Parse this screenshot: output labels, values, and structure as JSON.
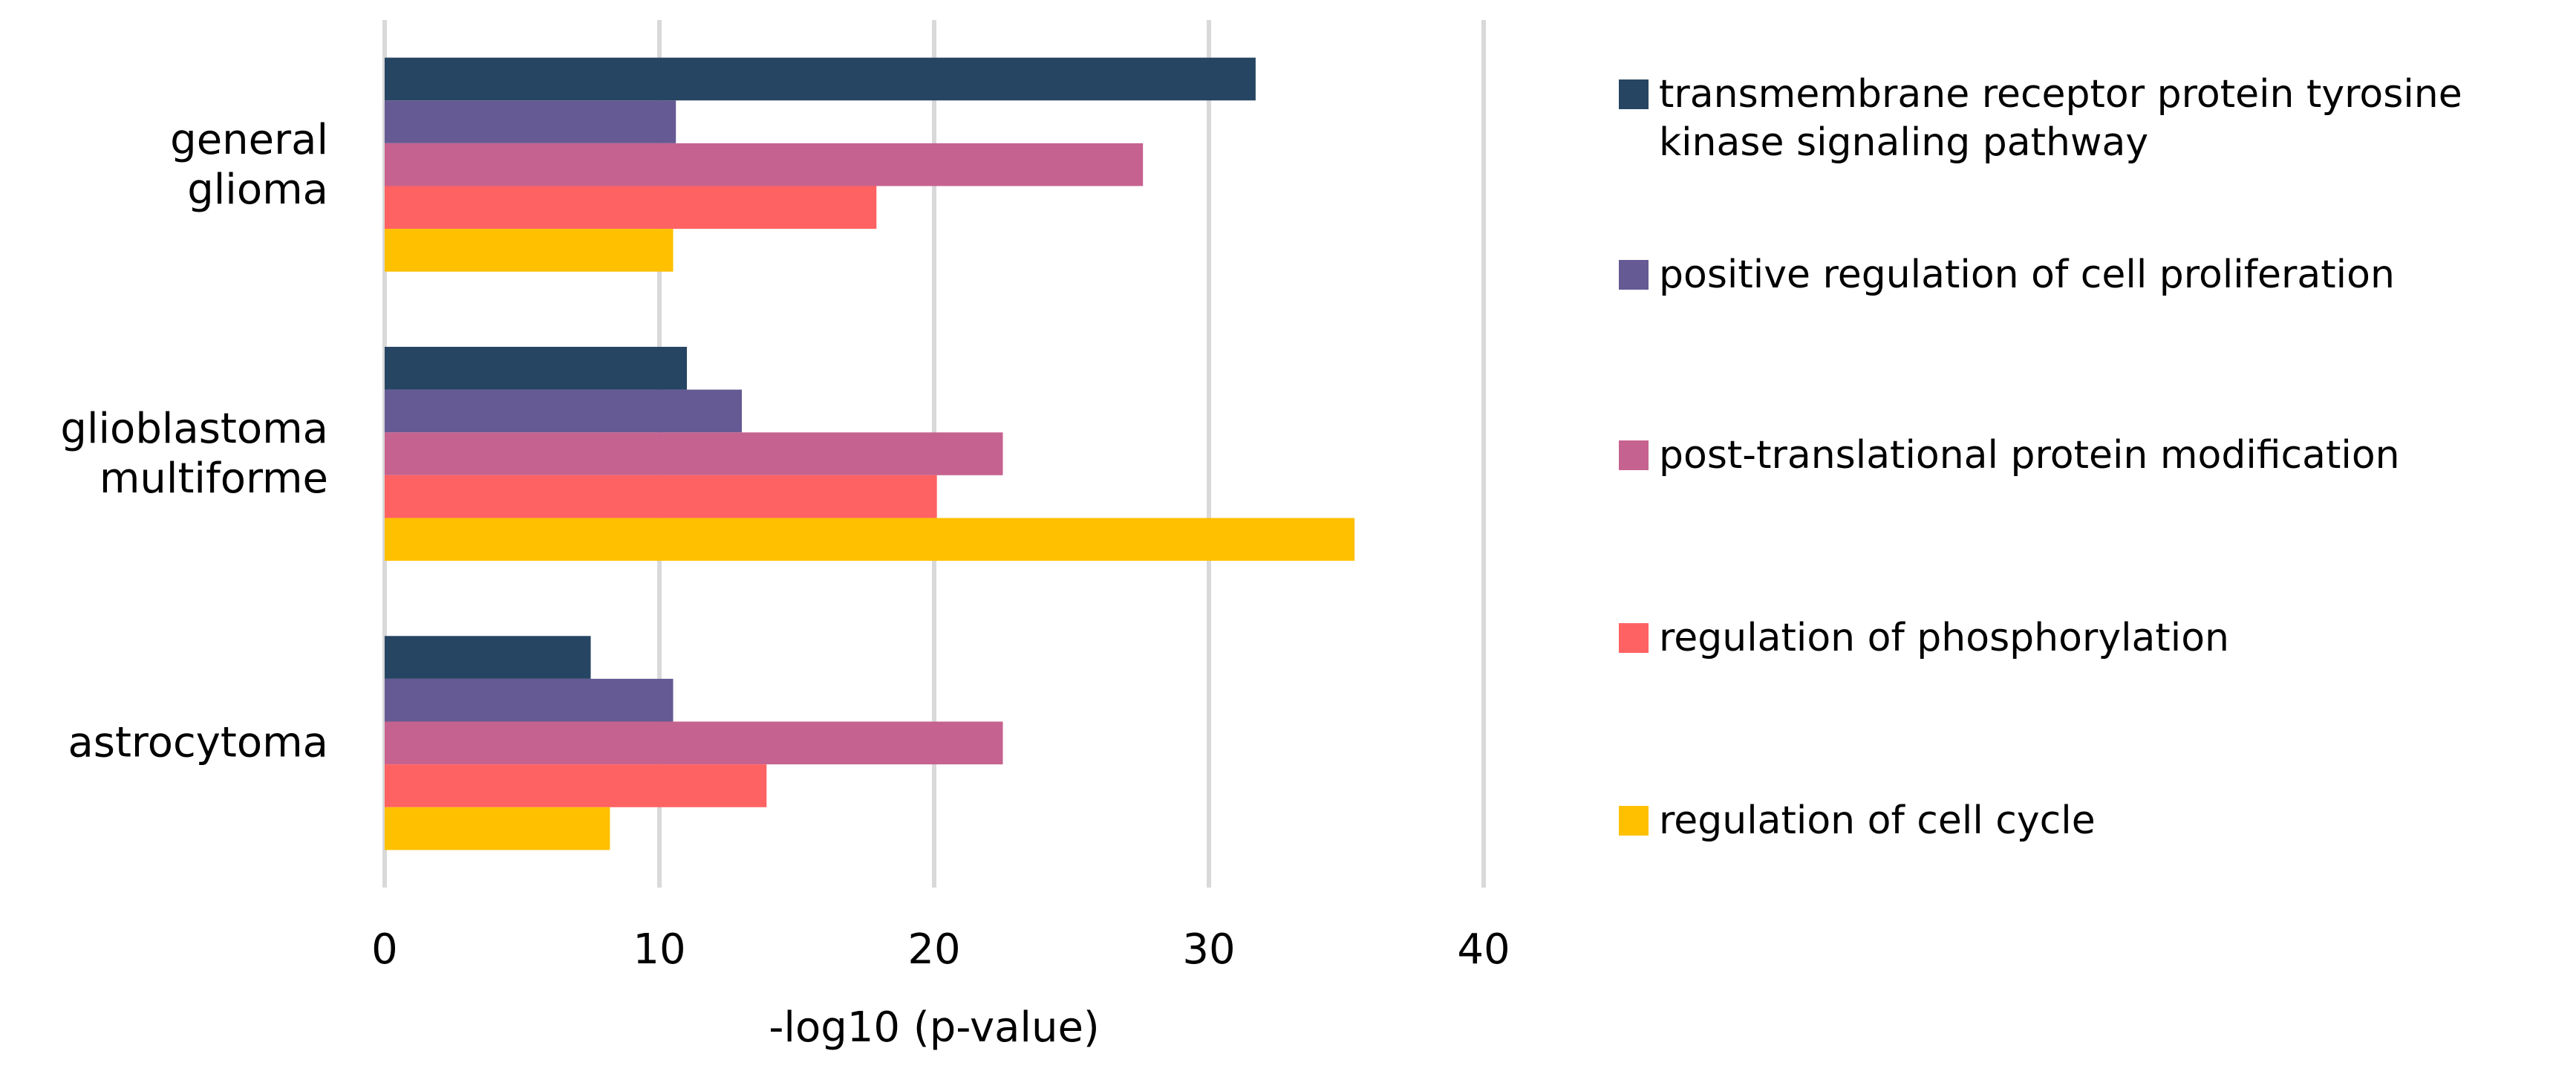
{
  "chart_data": {
    "type": "bar",
    "orientation": "horizontal",
    "x_label": "-log10 (p-value)",
    "categories": [
      "general glioma",
      "glioblastoma multiforme",
      "astrocytoma"
    ],
    "series": [
      {
        "name": "transmembrane receptor protein tyrosine kinase signaling pathway",
        "color": "#264562",
        "values": [
          31.7,
          11.0,
          7.5
        ]
      },
      {
        "name": "positive regulation of cell proliferation",
        "color": "#655a93",
        "values": [
          10.6,
          13.0,
          10.5
        ]
      },
      {
        "name": "post-translational protein modification",
        "color": "#c6628f",
        "values": [
          27.6,
          22.5,
          22.5
        ]
      },
      {
        "name": "regulation of phosphorylation",
        "color": "#fe6262",
        "values": [
          17.9,
          20.1,
          13.9
        ]
      },
      {
        "name": "regulation of cell cycle",
        "color": "#ffc000",
        "values": [
          10.5,
          35.3,
          8.2
        ]
      }
    ],
    "xlim": [
      0,
      40
    ],
    "xticks": [
      0,
      10,
      20,
      30,
      40
    ],
    "grid": true,
    "legend": "right"
  }
}
